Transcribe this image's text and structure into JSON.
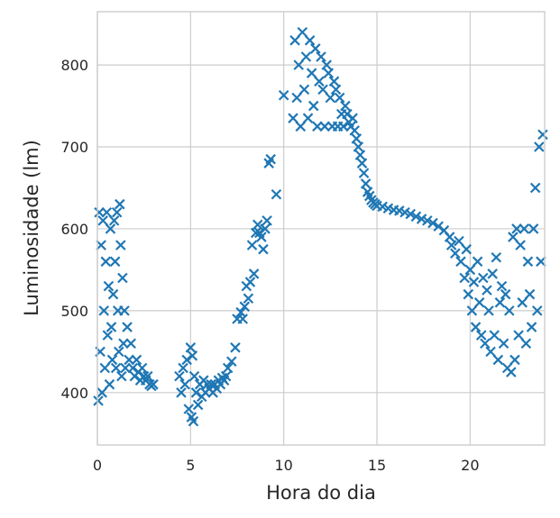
{
  "chart_data": {
    "type": "scatter",
    "title": "",
    "xlabel": "Hora do dia",
    "ylabel": "Luminosidade (lm)",
    "xlim": [
      0,
      24
    ],
    "ylim": [
      336,
      865
    ],
    "x_ticks": [
      0,
      5,
      10,
      15,
      20
    ],
    "y_ticks": [
      400,
      500,
      600,
      700,
      800
    ],
    "grid": true,
    "legend": "none",
    "marker": "x",
    "color": "#1f77b4",
    "series": [
      {
        "points": [
          [
            0.05,
            390
          ],
          [
            0.1,
            620
          ],
          [
            0.15,
            450
          ],
          [
            0.2,
            580
          ],
          [
            0.25,
            400
          ],
          [
            0.3,
            610
          ],
          [
            0.35,
            500
          ],
          [
            0.4,
            430
          ],
          [
            0.45,
            560
          ],
          [
            0.5,
            620
          ],
          [
            0.55,
            470
          ],
          [
            0.6,
            530
          ],
          [
            0.65,
            410
          ],
          [
            0.7,
            600
          ],
          [
            0.75,
            480
          ],
          [
            0.8,
            440
          ],
          [
            0.85,
            520
          ],
          [
            0.9,
            610
          ],
          [
            0.95,
            560
          ],
          [
            1.0,
            430
          ],
          [
            1.05,
            620
          ],
          [
            1.1,
            500
          ],
          [
            1.15,
            450
          ],
          [
            1.2,
            630
          ],
          [
            1.25,
            580
          ],
          [
            1.3,
            420
          ],
          [
            1.35,
            540
          ],
          [
            1.4,
            460
          ],
          [
            1.45,
            500
          ],
          [
            1.5,
            430
          ],
          [
            1.6,
            480
          ],
          [
            1.7,
            440
          ],
          [
            1.8,
            460
          ],
          [
            1.9,
            430
          ],
          [
            2.0,
            420
          ],
          [
            2.1,
            440
          ],
          [
            2.2,
            425
          ],
          [
            2.3,
            415
          ],
          [
            2.4,
            430
          ],
          [
            2.5,
            420
          ],
          [
            2.6,
            415
          ],
          [
            2.7,
            420
          ],
          [
            2.8,
            410
          ],
          [
            2.9,
            408
          ],
          [
            3.0,
            410
          ],
          [
            4.4,
            420
          ],
          [
            4.5,
            400
          ],
          [
            4.6,
            430
          ],
          [
            4.7,
            410
          ],
          [
            4.8,
            440
          ],
          [
            4.9,
            380
          ],
          [
            5.0,
            455
          ],
          [
            5.05,
            370
          ],
          [
            5.1,
            445
          ],
          [
            5.15,
            365
          ],
          [
            5.2,
            420
          ],
          [
            5.3,
            400
          ],
          [
            5.4,
            385
          ],
          [
            5.5,
            410
          ],
          [
            5.6,
            395
          ],
          [
            5.7,
            415
          ],
          [
            5.8,
            400
          ],
          [
            5.9,
            410
          ],
          [
            6.0,
            405
          ],
          [
            6.1,
            410
          ],
          [
            6.2,
            400
          ],
          [
            6.3,
            410
          ],
          [
            6.4,
            405
          ],
          [
            6.5,
            415
          ],
          [
            6.6,
            410
          ],
          [
            6.7,
            418
          ],
          [
            6.8,
            415
          ],
          [
            6.9,
            420
          ],
          [
            7.0,
            430
          ],
          [
            7.2,
            438
          ],
          [
            7.4,
            455
          ],
          [
            7.5,
            490
          ],
          [
            7.7,
            498
          ],
          [
            7.8,
            490
          ],
          [
            7.9,
            505
          ],
          [
            8.0,
            530
          ],
          [
            8.1,
            515
          ],
          [
            8.2,
            535
          ],
          [
            8.3,
            580
          ],
          [
            8.4,
            545
          ],
          [
            8.5,
            595
          ],
          [
            8.6,
            605
          ],
          [
            8.7,
            595
          ],
          [
            8.8,
            590
          ],
          [
            8.9,
            575
          ],
          [
            9.0,
            600
          ],
          [
            9.1,
            610
          ],
          [
            9.2,
            680
          ],
          [
            9.3,
            685
          ],
          [
            9.6,
            642
          ],
          [
            10.0,
            763
          ],
          [
            10.5,
            735
          ],
          [
            10.6,
            830
          ],
          [
            10.7,
            760
          ],
          [
            10.8,
            800
          ],
          [
            10.9,
            725
          ],
          [
            11.0,
            840
          ],
          [
            11.1,
            770
          ],
          [
            11.2,
            810
          ],
          [
            11.3,
            735
          ],
          [
            11.4,
            830
          ],
          [
            11.5,
            790
          ],
          [
            11.6,
            750
          ],
          [
            11.7,
            820
          ],
          [
            11.8,
            725
          ],
          [
            11.9,
            780
          ],
          [
            12.0,
            810
          ],
          [
            12.1,
            770
          ],
          [
            12.2,
            725
          ],
          [
            12.3,
            800
          ],
          [
            12.4,
            790
          ],
          [
            12.5,
            760
          ],
          [
            12.6,
            725
          ],
          [
            12.7,
            780
          ],
          [
            12.8,
            770
          ],
          [
            12.9,
            725
          ],
          [
            13.0,
            760
          ],
          [
            13.1,
            740
          ],
          [
            13.2,
            725
          ],
          [
            13.3,
            750
          ],
          [
            13.4,
            740
          ],
          [
            13.5,
            730
          ],
          [
            13.6,
            725
          ],
          [
            13.7,
            735
          ],
          [
            13.8,
            720
          ],
          [
            13.9,
            710
          ],
          [
            14.0,
            700
          ],
          [
            14.1,
            690
          ],
          [
            14.2,
            680
          ],
          [
            14.3,
            668
          ],
          [
            14.4,
            655
          ],
          [
            14.5,
            645
          ],
          [
            14.6,
            640
          ],
          [
            14.7,
            635
          ],
          [
            14.8,
            632
          ],
          [
            14.9,
            630
          ],
          [
            15.0,
            628
          ],
          [
            15.3,
            627
          ],
          [
            15.6,
            625
          ],
          [
            15.9,
            623
          ],
          [
            16.2,
            622
          ],
          [
            16.5,
            620
          ],
          [
            16.8,
            618
          ],
          [
            17.1,
            615
          ],
          [
            17.4,
            612
          ],
          [
            17.7,
            610
          ],
          [
            18.0,
            607
          ],
          [
            18.3,
            603
          ],
          [
            18.6,
            598
          ],
          [
            18.9,
            590
          ],
          [
            19.0,
            580
          ],
          [
            19.2,
            570
          ],
          [
            19.4,
            585
          ],
          [
            19.5,
            560
          ],
          [
            19.7,
            540
          ],
          [
            19.8,
            575
          ],
          [
            19.9,
            520
          ],
          [
            20.0,
            550
          ],
          [
            20.1,
            500
          ],
          [
            20.2,
            535
          ],
          [
            20.3,
            480
          ],
          [
            20.4,
            560
          ],
          [
            20.5,
            510
          ],
          [
            20.6,
            470
          ],
          [
            20.7,
            540
          ],
          [
            20.8,
            460
          ],
          [
            20.9,
            525
          ],
          [
            21.0,
            500
          ],
          [
            21.1,
            450
          ],
          [
            21.2,
            545
          ],
          [
            21.3,
            470
          ],
          [
            21.4,
            565
          ],
          [
            21.5,
            440
          ],
          [
            21.6,
            510
          ],
          [
            21.7,
            530
          ],
          [
            21.8,
            460
          ],
          [
            21.9,
            520
          ],
          [
            22.0,
            430
          ],
          [
            22.1,
            500
          ],
          [
            22.2,
            425
          ],
          [
            22.3,
            590
          ],
          [
            22.4,
            440
          ],
          [
            22.5,
            600
          ],
          [
            22.6,
            470
          ],
          [
            22.7,
            580
          ],
          [
            22.8,
            510
          ],
          [
            22.9,
            600
          ],
          [
            23.0,
            460
          ],
          [
            23.1,
            560
          ],
          [
            23.2,
            520
          ],
          [
            23.3,
            480
          ],
          [
            23.4,
            600
          ],
          [
            23.5,
            650
          ],
          [
            23.6,
            500
          ],
          [
            23.7,
            700
          ],
          [
            23.8,
            560
          ],
          [
            23.9,
            715
          ]
        ]
      }
    ]
  }
}
